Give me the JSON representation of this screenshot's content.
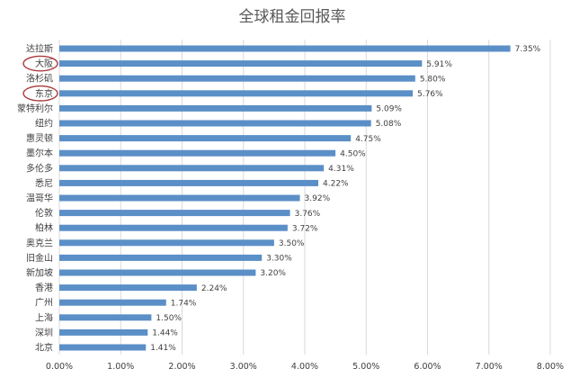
{
  "chart_data": {
    "type": "bar",
    "orientation": "horizontal",
    "title": "全球租金回报率",
    "categories": [
      "达拉斯",
      "大阪",
      "洛杉矶",
      "东京",
      "蒙特利尔",
      "纽约",
      "惠灵顿",
      "墨尔本",
      "多伦多",
      "悉尼",
      "温哥华",
      "伦敦",
      "柏林",
      "奥克兰",
      "旧金山",
      "新加坡",
      "香港",
      "广州",
      "上海",
      "深圳",
      "北京"
    ],
    "values": [
      7.35,
      5.91,
      5.8,
      5.76,
      5.09,
      5.08,
      4.75,
      4.5,
      4.31,
      4.22,
      3.92,
      3.76,
      3.72,
      3.5,
      3.3,
      3.2,
      2.24,
      1.74,
      1.5,
      1.44,
      1.41
    ],
    "value_labels": [
      "7.35%",
      "5.91%",
      "5.80%",
      "5.76%",
      "5.09%",
      "5.08%",
      "4.75%",
      "4.50%",
      "4.31%",
      "4.22%",
      "3.92%",
      "3.76%",
      "3.72%",
      "3.50%",
      "3.30%",
      "3.20%",
      "2.24%",
      "1.74%",
      "1.50%",
      "1.44%",
      "1.41%"
    ],
    "xlim": [
      0,
      8
    ],
    "xticks": [
      "0.00%",
      "1.00%",
      "2.00%",
      "3.00%",
      "4.00%",
      "5.00%",
      "6.00%",
      "7.00%",
      "8.00%"
    ],
    "grid": "vertical",
    "bar_color": "#5b8fc7",
    "highlighted_categories": [
      "大阪",
      "东京"
    ],
    "highlight_color": "#a93a3a"
  }
}
